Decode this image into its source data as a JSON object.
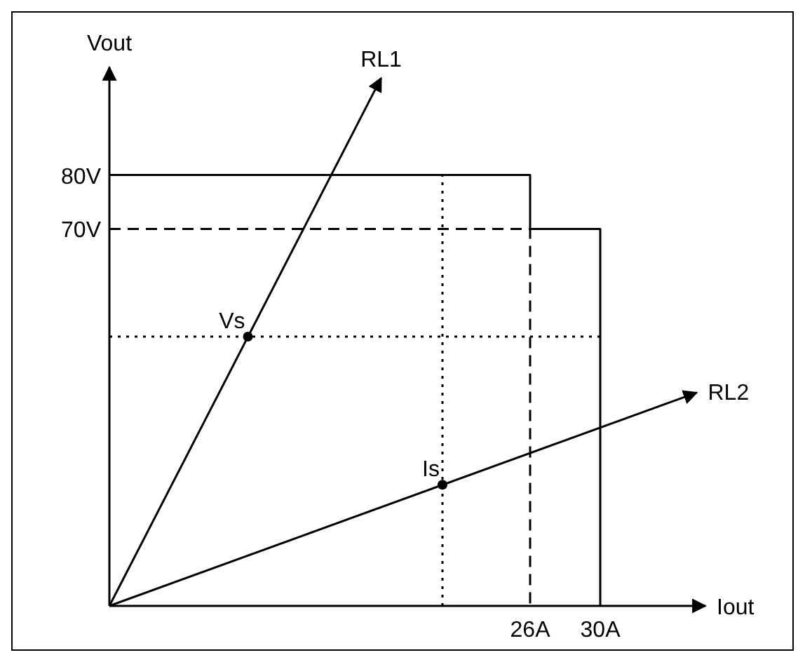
{
  "chart_data": {
    "type": "line",
    "xlabel": "Iout",
    "ylabel": "Vout",
    "xlim": [
      2,
      36
    ],
    "ylim": [
      0,
      100
    ],
    "xticks": [
      {
        "value": 26,
        "label": "26A"
      },
      {
        "value": 30,
        "label": "30A"
      }
    ],
    "yticks": [
      {
        "value": 70,
        "label": "70V"
      },
      {
        "value": 80,
        "label": "80V"
      }
    ],
    "series": [
      {
        "type": "line",
        "x": [
          2,
          26,
          26
        ],
        "values": [
          80,
          80,
          70
        ],
        "color": "#000000",
        "line_style": "solid"
      },
      {
        "type": "line",
        "x": [
          2,
          26,
          26
        ],
        "values": [
          70,
          70,
          0
        ],
        "color": "#000000",
        "line_style": "dashed"
      },
      {
        "type": "line",
        "x": [
          26,
          30,
          30
        ],
        "values": [
          70,
          70,
          0
        ],
        "color": "#000000",
        "line_style": "solid"
      },
      {
        "type": "line",
        "name": "RL1",
        "x": [
          2,
          17.5
        ],
        "values": [
          0,
          98
        ],
        "color": "#000000",
        "line_style": "solid"
      },
      {
        "type": "line",
        "name": "RL2",
        "x": [
          2,
          35.5
        ],
        "values": [
          0,
          39.6
        ],
        "color": "#000000",
        "line_style": "solid"
      },
      {
        "type": "line",
        "x": [
          2,
          30
        ],
        "values": [
          50,
          50
        ],
        "color": "#000000",
        "line_style": "dotted"
      },
      {
        "type": "line",
        "x": [
          21,
          21
        ],
        "values": [
          0,
          80
        ],
        "color": "#000000",
        "line_style": "dotted"
      },
      {
        "type": "scatter",
        "x": [
          9.9,
          21
        ],
        "values": [
          50,
          22.5
        ],
        "color": "#000000",
        "marker": "circle"
      }
    ],
    "annotations": [
      {
        "text": "Vs",
        "x": 9.9,
        "y": 50
      },
      {
        "text": "Is",
        "x": 21,
        "y": 22.5
      }
    ]
  }
}
